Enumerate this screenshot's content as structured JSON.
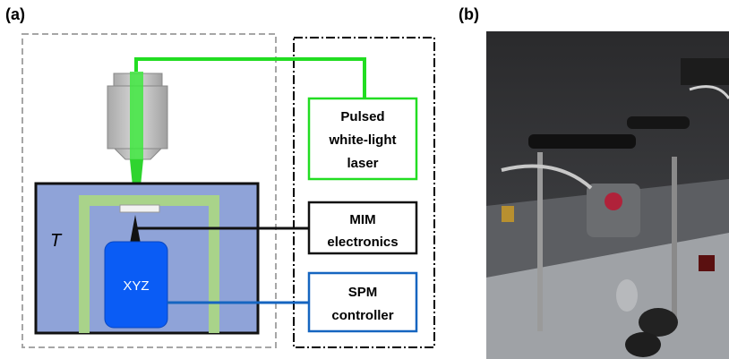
{
  "panel_a": {
    "label": "(a)",
    "chamber_label": "T",
    "stage_label": "XYZ",
    "boxes": [
      {
        "lines": [
          "Pulsed",
          "white-light",
          "laser"
        ]
      },
      {
        "lines": [
          "MIM",
          "electronics"
        ]
      },
      {
        "lines": [
          "SPM",
          "controller"
        ]
      }
    ]
  },
  "panel_b": {
    "label": "(b)"
  }
}
